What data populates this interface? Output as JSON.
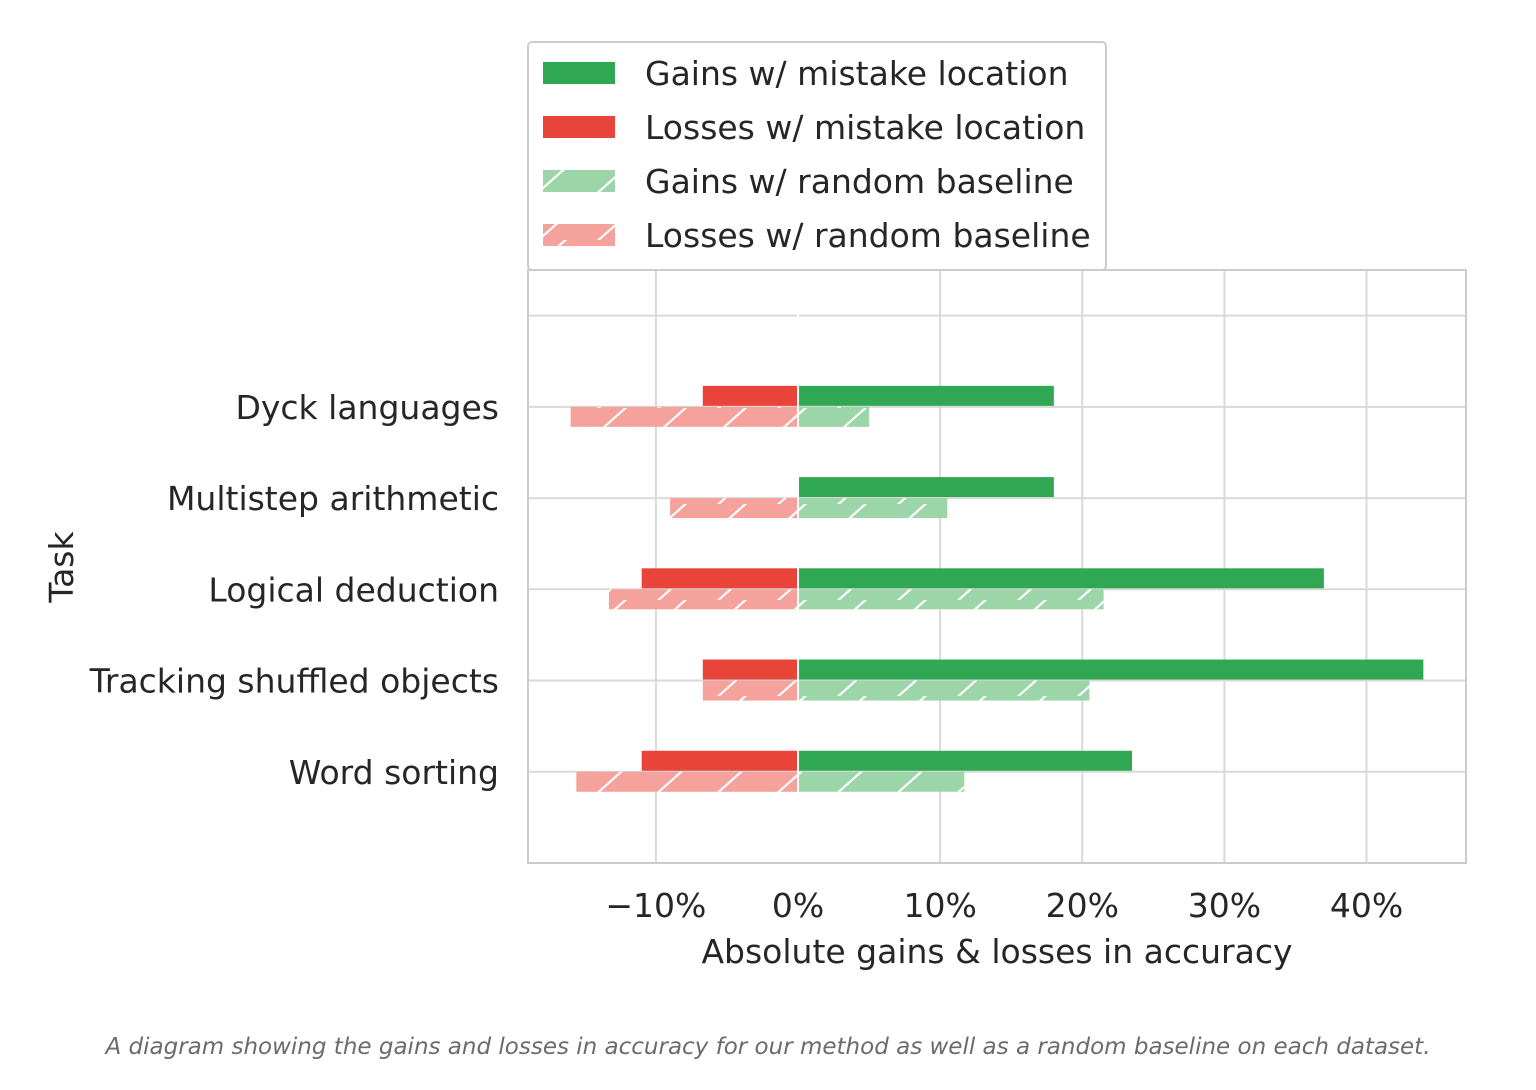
{
  "chart_data": {
    "type": "bar",
    "orientation": "horizontal",
    "title": "",
    "xlabel": "Absolute gains & losses in accuracy",
    "ylabel": "Task",
    "categories": [
      "Dyck languages",
      "Multistep arithmetic",
      "Logical deduction",
      "Tracking shuffled objects",
      "Word sorting"
    ],
    "xlim": [
      -19,
      47
    ],
    "ylim": [
      -1,
      5.5
    ],
    "x_ticks": [
      -10,
      0,
      10,
      20,
      30,
      40
    ],
    "x_tick_labels": [
      "−10%",
      "0%",
      "10%",
      "20%",
      "30%",
      "40%"
    ],
    "grid": true,
    "legend_position": "top-center",
    "series": [
      {
        "name": "Gains w/ mistake location",
        "values": [
          18,
          18,
          37,
          44,
          23.5
        ],
        "color": "#30a853",
        "hatch": false,
        "group": "mistake"
      },
      {
        "name": "Losses w/ mistake location",
        "values": [
          -6.7,
          0,
          -11,
          -6.7,
          -11
        ],
        "color": "#e8443a",
        "hatch": false,
        "group": "mistake"
      },
      {
        "name": "Gains w/ random baseline",
        "values": [
          5,
          10.5,
          21.5,
          20.5,
          11.7
        ],
        "color": "#9cd5a8",
        "hatch": true,
        "group": "random"
      },
      {
        "name": "Losses w/ random baseline",
        "values": [
          -16,
          -9,
          -13.3,
          -6.7,
          -15.6
        ],
        "color": "#f4a29b",
        "hatch": true,
        "group": "random"
      }
    ]
  },
  "caption": "A diagram showing the gains and losses in accuracy for our method as well as a random baseline on each dataset."
}
